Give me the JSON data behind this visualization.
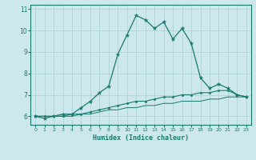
{
  "xlabel": "Humidex (Indice chaleur)",
  "bg_color": "#cce8ec",
  "grid_color": "#aacdd4",
  "line_color": "#1a7a6e",
  "x_values": [
    0,
    1,
    2,
    3,
    4,
    5,
    6,
    7,
    8,
    9,
    10,
    11,
    12,
    13,
    14,
    15,
    16,
    17,
    18,
    19,
    20,
    21,
    22,
    23
  ],
  "line1": [
    6.0,
    5.9,
    6.0,
    6.1,
    6.1,
    6.4,
    6.7,
    7.1,
    7.4,
    8.9,
    9.8,
    10.7,
    10.5,
    10.1,
    10.4,
    9.6,
    10.1,
    9.4,
    7.8,
    7.3,
    7.5,
    7.3,
    7.0,
    6.9
  ],
  "line2": [
    6.0,
    6.0,
    6.0,
    6.0,
    6.1,
    6.1,
    6.2,
    6.3,
    6.4,
    6.5,
    6.6,
    6.7,
    6.7,
    6.8,
    6.9,
    6.9,
    7.0,
    7.0,
    7.1,
    7.1,
    7.2,
    7.2,
    7.0,
    6.9
  ],
  "line3": [
    6.0,
    6.0,
    6.0,
    6.0,
    6.0,
    6.1,
    6.1,
    6.2,
    6.3,
    6.3,
    6.4,
    6.4,
    6.5,
    6.5,
    6.6,
    6.6,
    6.7,
    6.7,
    6.7,
    6.8,
    6.8,
    6.9,
    6.9,
    6.9
  ],
  "ylim": [
    5.6,
    11.2
  ],
  "yticks": [
    6,
    7,
    8,
    9,
    10,
    11
  ],
  "xlim": [
    -0.5,
    23.5
  ]
}
